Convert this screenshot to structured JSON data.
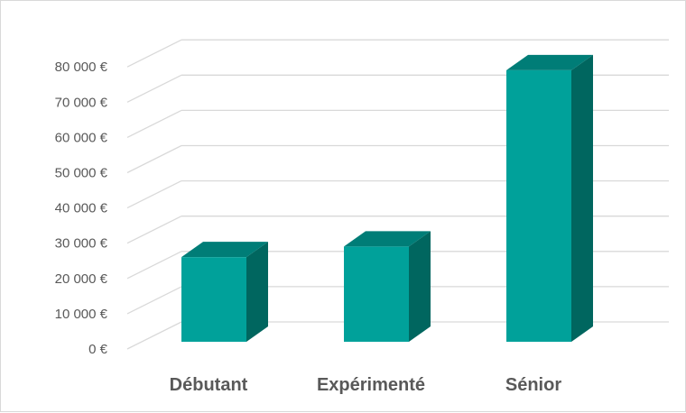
{
  "chart_data": {
    "type": "bar",
    "style": "3d-column",
    "categories": [
      "Débutant",
      "Expérimenté",
      "Sénior"
    ],
    "values": [
      24000,
      27000,
      77000
    ],
    "ylim": [
      0,
      80000
    ],
    "yticks": [
      0,
      10000,
      20000,
      30000,
      40000,
      50000,
      60000,
      70000,
      80000
    ],
    "ytick_labels": [
      "0 €",
      "10 000 €",
      "20 000 €",
      "30 000 €",
      "40 000 €",
      "50 000 €",
      "60 000 €",
      "70 000 €",
      "80 000 €"
    ],
    "grid": true,
    "legend": "none",
    "colors": {
      "front": "#00A19A",
      "top": "#007D77",
      "side": "#00665F",
      "grid": "#d9d9d9",
      "text": "#595959"
    }
  }
}
